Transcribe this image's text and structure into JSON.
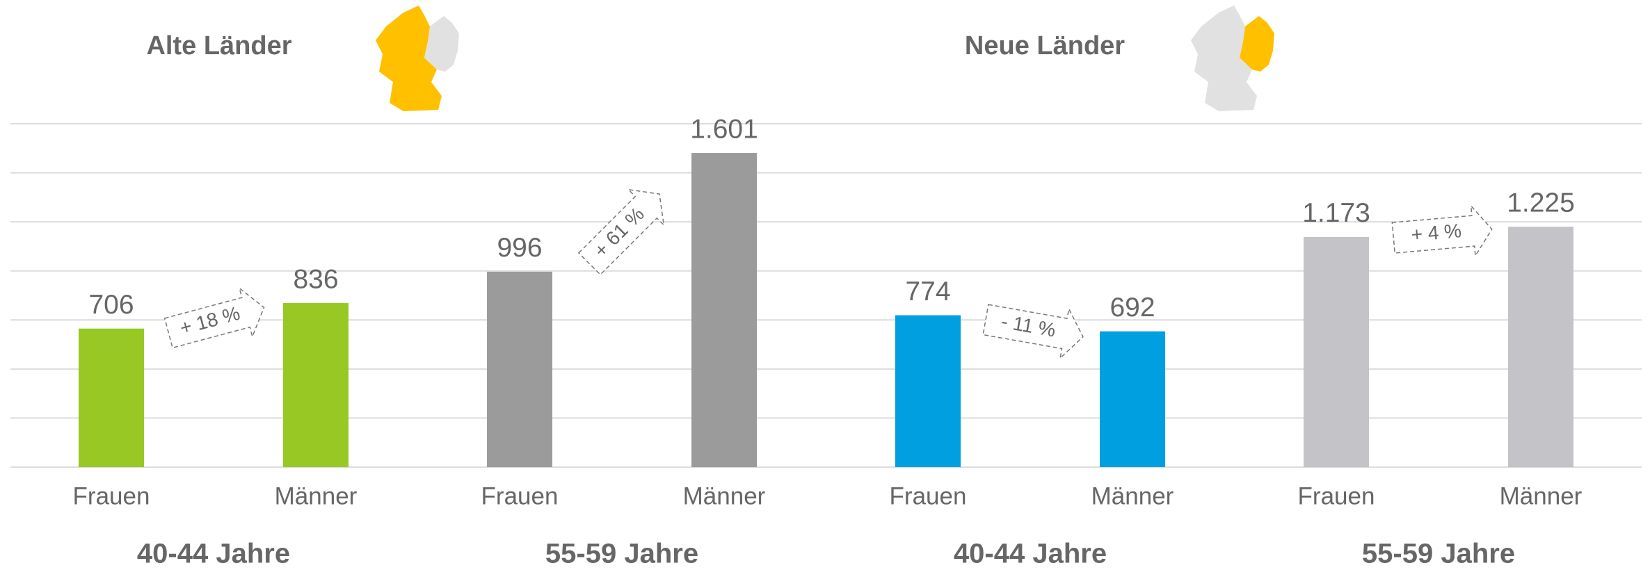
{
  "chart_data": {
    "type": "bar",
    "regions": [
      "Alte Länder",
      "Neue Länder"
    ],
    "groups": [
      "40-44 Jahre",
      "55-59 Jahre",
      "40-44 Jahre",
      "55-59 Jahre"
    ],
    "categories": [
      "Frauen",
      "Männer",
      "Frauen",
      "Männer",
      "Frauen",
      "Männer",
      "Frauen",
      "Männer"
    ],
    "values": [
      706,
      836,
      996,
      1601,
      774,
      692,
      1173,
      1225
    ],
    "value_labels": [
      "706",
      "836",
      "996",
      "1.601",
      "774",
      "692",
      "1.173",
      "1.225"
    ],
    "colors": [
      "#97c824",
      "#97c824",
      "#9b9b9b",
      "#9b9b9b",
      "#009fe0",
      "#009fe0",
      "#c3c3c8",
      "#c3c3c8"
    ],
    "annotations": [
      "+ 18 %",
      "+ 61 %",
      "- 11 %",
      "+ 4 %"
    ],
    "ylim": [
      0,
      1750
    ],
    "yticks": [
      0,
      250,
      500,
      750,
      1000,
      1250,
      1500,
      1750
    ],
    "grid": true
  }
}
